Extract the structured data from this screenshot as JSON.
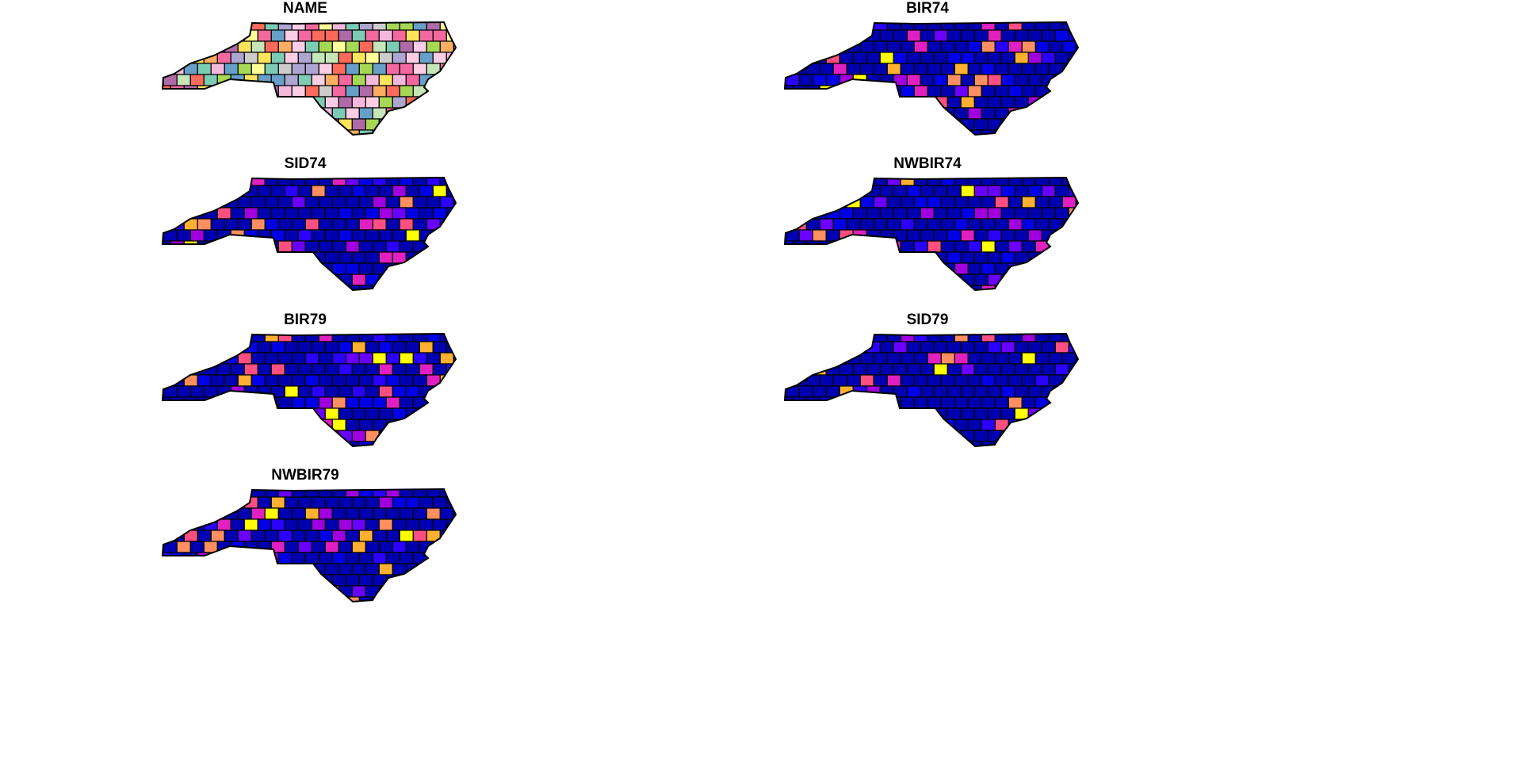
{
  "panels": [
    {
      "title": "NAME",
      "palette": "categorical"
    },
    {
      "title": "BIR74",
      "palette": "sequential"
    },
    {
      "title": "SID74",
      "palette": "sequential"
    },
    {
      "title": "NWBIR74",
      "palette": "sequential"
    },
    {
      "title": "BIR79",
      "palette": "sequential"
    },
    {
      "title": "SID79",
      "palette": "sequential"
    },
    {
      "title": "NWBIR79",
      "palette": "sequential"
    }
  ],
  "colors": {
    "categorical": [
      "#66a0c8",
      "#aca6d0",
      "#ffff99",
      "#7ccbb5",
      "#a6d854",
      "#f468a0",
      "#f4b8dc",
      "#fdae61",
      "#fb6a5a",
      "#c6e6b8",
      "#cccccc",
      "#ffe45c",
      "#b06aa8",
      "#fccde5"
    ],
    "sequential": [
      "#0000b0",
      "#0000b0",
      "#0000b0",
      "#0000e6",
      "#0000e6",
      "#2a00ff",
      "#6a00ff",
      "#a000e0",
      "#e020c0",
      "#ff4f80",
      "#ff8f60",
      "#ffb030",
      "#ffff00"
    ],
    "border": "#000000"
  }
}
